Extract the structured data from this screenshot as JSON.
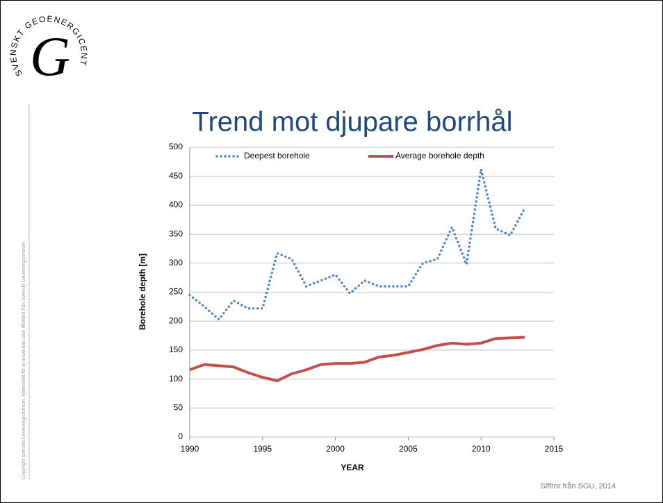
{
  "logo": {
    "ring": "SVENSKT GEOENERGICENTRUM",
    "letter": "G"
  },
  "copyright": "Copyright svenskt Geoenergicentrum. Materialet får ej användas utan tillstånd från Svenskt Geoenergicentrum",
  "source": "Siffror från SGU, 2014",
  "chart_data": {
    "type": "line",
    "title": "Trend mot djupare borrhål",
    "x_label": "YEAR",
    "y_label": "Borehole depth [m]",
    "x": [
      1990,
      1991,
      1992,
      1993,
      1994,
      1995,
      1996,
      1997,
      1998,
      1999,
      2000,
      2001,
      2002,
      2003,
      2004,
      2005,
      2006,
      2007,
      2008,
      2009,
      2010,
      2011,
      2012,
      2013
    ],
    "series": [
      {
        "name": "Deepest borehole",
        "color": "#4f86c6",
        "style": "dotted",
        "values": [
          245,
          225,
          203,
          235,
          222,
          222,
          317,
          307,
          260,
          270,
          280,
          248,
          270,
          260,
          260,
          260,
          300,
          307,
          362,
          298,
          462,
          360,
          348,
          395
        ]
      },
      {
        "name": "Average borehole depth",
        "color": "#c0504d",
        "style": "solid",
        "values": [
          116,
          125,
          123,
          121,
          111,
          103,
          97,
          109,
          116,
          125,
          127,
          127,
          129,
          138,
          141,
          146,
          151,
          158,
          162,
          160,
          162,
          170,
          171,
          172
        ]
      }
    ],
    "xlim": [
      1990,
      2015
    ],
    "xticks": [
      1990,
      1995,
      2000,
      2005,
      2010,
      2015
    ],
    "ylim": [
      0,
      500
    ],
    "yticks": [
      0,
      50,
      100,
      150,
      200,
      250,
      300,
      350,
      400,
      450,
      500
    ],
    "grid": true,
    "legend": "top"
  }
}
